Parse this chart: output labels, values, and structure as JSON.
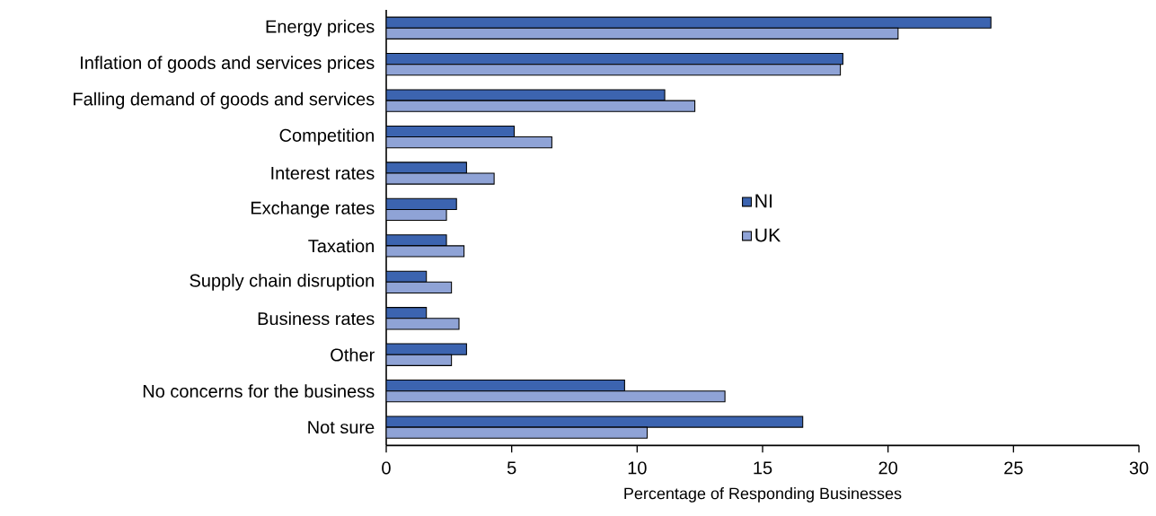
{
  "chart_data": {
    "type": "bar",
    "orientation": "horizontal",
    "xlabel": "Percentage of Responding Businesses",
    "categories": [
      "Energy prices",
      "Inflation of goods and services prices",
      "Falling demand of goods and services",
      "Competition",
      "Interest rates",
      "Exchange rates",
      "Taxation",
      "Supply chain disruption",
      "Business rates",
      "Other",
      "No concerns for the business",
      "Not sure"
    ],
    "series": [
      {
        "name": "NI",
        "color": "#3c64b0",
        "values": [
          24.1,
          18.2,
          11.1,
          5.1,
          3.2,
          2.8,
          2.4,
          1.6,
          1.6,
          3.2,
          9.5,
          16.6
        ]
      },
      {
        "name": "UK",
        "color": "#8fa3d6",
        "values": [
          20.4,
          18.1,
          12.3,
          6.6,
          4.3,
          2.4,
          3.1,
          2.6,
          2.9,
          2.6,
          13.5,
          10.4
        ]
      }
    ],
    "xlim": [
      0,
      30
    ],
    "xticks": [
      0,
      5,
      10,
      15,
      20,
      25,
      30
    ],
    "grid": false,
    "legend": "center"
  }
}
